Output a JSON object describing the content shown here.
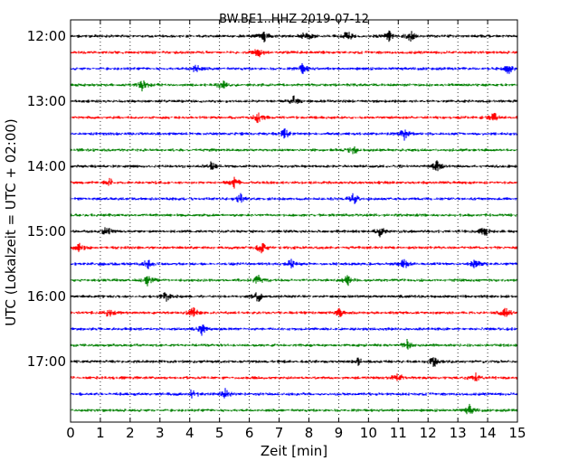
{
  "chart_data": {
    "type": "line",
    "title": "BW.BE1..HHZ 2019-07-12",
    "xlabel": "Zeit  [min]",
    "ylabel": "UTC (Lokalzeit = UTC + 02:00)",
    "xlim": [
      0,
      15
    ],
    "x_ticks": [
      "0",
      "1",
      "2",
      "3",
      "4",
      "5",
      "6",
      "7",
      "8",
      "9",
      "10",
      "11",
      "12",
      "13",
      "14",
      "15"
    ],
    "y_ticks": [
      "12:00",
      "13:00",
      "14:00",
      "15:00",
      "16:00",
      "17:00"
    ],
    "grid": "vertical dotted",
    "colors": [
      "#000000",
      "#ff0000",
      "#0000ff",
      "#008000"
    ],
    "series": [
      {
        "start": "12:00",
        "events": [
          6.5,
          7.9,
          9.3,
          10.7,
          11.4
        ]
      },
      {
        "start": "12:15",
        "events": [
          6.3
        ]
      },
      {
        "start": "12:30",
        "events": [
          4.2,
          7.8,
          14.7
        ]
      },
      {
        "start": "12:45",
        "events": [
          2.4,
          5.1
        ]
      },
      {
        "start": "13:00",
        "events": [
          7.5
        ]
      },
      {
        "start": "13:15",
        "events": [
          6.3,
          14.2
        ]
      },
      {
        "start": "13:30",
        "events": [
          7.2,
          11.2
        ]
      },
      {
        "start": "13:45",
        "events": [
          9.5
        ]
      },
      {
        "start": "14:00",
        "events": [
          4.7,
          12.3
        ]
      },
      {
        "start": "14:15",
        "events": [
          1.3,
          5.5
        ]
      },
      {
        "start": "14:30",
        "events": [
          5.7,
          9.5
        ]
      },
      {
        "start": "14:45",
        "events": []
      },
      {
        "start": "15:00",
        "events": [
          1.2,
          10.4,
          13.9
        ]
      },
      {
        "start": "15:15",
        "events": [
          0.3,
          6.4
        ]
      },
      {
        "start": "15:30",
        "events": [
          2.6,
          7.4,
          11.2,
          13.6
        ]
      },
      {
        "start": "15:45",
        "events": [
          2.6,
          6.3,
          9.3
        ]
      },
      {
        "start": "16:00",
        "events": [
          3.2,
          6.3
        ]
      },
      {
        "start": "16:15",
        "events": [
          1.3,
          4.1,
          9.0,
          14.6
        ]
      },
      {
        "start": "16:30",
        "events": [
          4.4
        ]
      },
      {
        "start": "16:45",
        "events": [
          11.3
        ]
      },
      {
        "start": "17:00",
        "events": [
          9.7,
          12.2
        ]
      },
      {
        "start": "17:15",
        "events": [
          11.0,
          13.6
        ]
      },
      {
        "start": "17:30",
        "events": [
          4.1,
          5.2
        ]
      },
      {
        "start": "17:45",
        "events": [
          13.4
        ]
      }
    ]
  }
}
